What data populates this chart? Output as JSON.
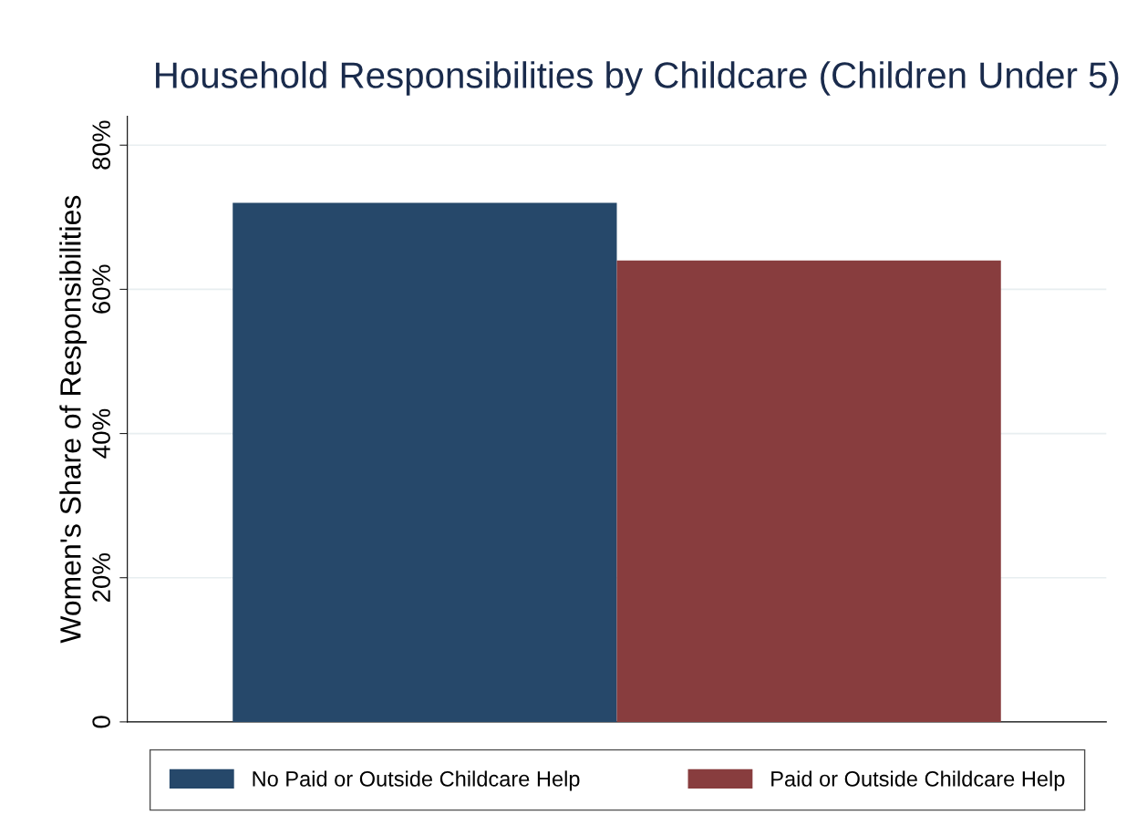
{
  "chart_data": {
    "type": "bar",
    "title": "Household Responsibilities by Childcare (Children Under 5)",
    "ylabel": "Women's Share of Responsibilities",
    "categories": [
      null
    ],
    "series": [
      {
        "name": "No Paid or Outside Childcare Help",
        "color": "#26486a",
        "values": [
          72
        ]
      },
      {
        "name": "Paid or Outside Childcare Help",
        "color": "#883d3e",
        "values": [
          64
        ]
      }
    ],
    "ylim": [
      0,
      84
    ],
    "yticks": [
      {
        "value": 0,
        "label": "0"
      },
      {
        "value": 20,
        "label": "20%"
      },
      {
        "value": 40,
        "label": "40%"
      },
      {
        "value": 60,
        "label": "60%"
      },
      {
        "value": 80,
        "label": "80%"
      }
    ],
    "grid": "y",
    "legend": "bottom"
  }
}
